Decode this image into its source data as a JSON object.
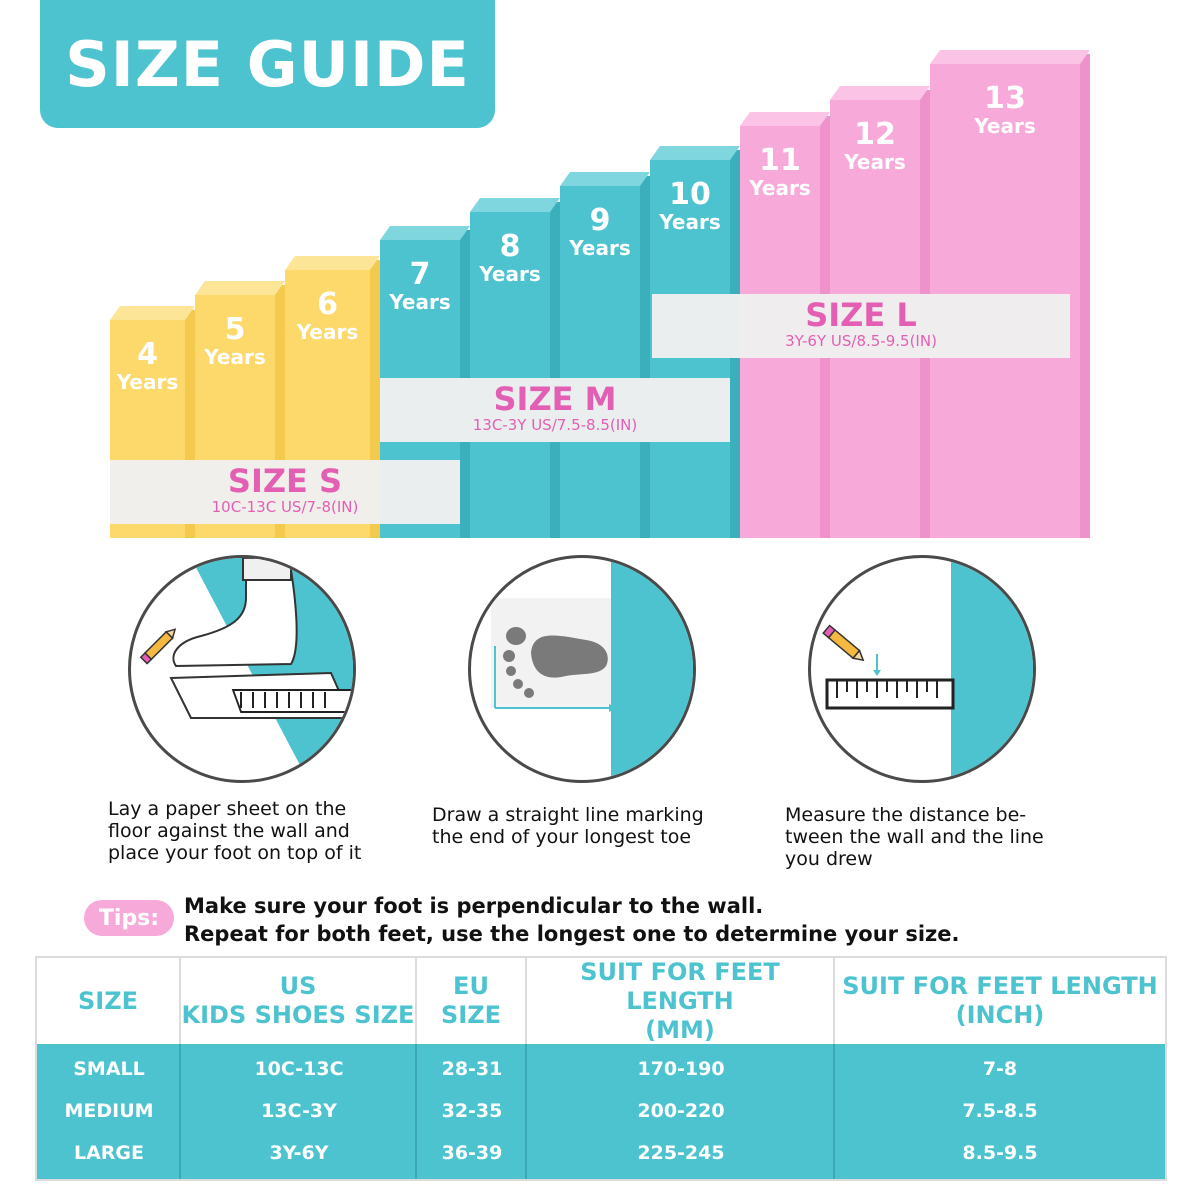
{
  "title": "SIZE GUIDE",
  "colors": {
    "size_s": "#fcd96a",
    "size_m": "#4cc3cf",
    "size_l": "#f7a9d9",
    "accent": "#e35fb4"
  },
  "ages": [
    {
      "num": "4",
      "unit": "Years"
    },
    {
      "num": "5",
      "unit": "Years"
    },
    {
      "num": "6",
      "unit": "Years"
    },
    {
      "num": "7",
      "unit": "Years"
    },
    {
      "num": "8",
      "unit": "Years"
    },
    {
      "num": "9",
      "unit": "Years"
    },
    {
      "num": "10",
      "unit": "Years"
    },
    {
      "num": "11",
      "unit": "Years"
    },
    {
      "num": "12",
      "unit": "Years"
    },
    {
      "num": "13",
      "unit": "Years"
    }
  ],
  "sizes": {
    "s": {
      "label": "SIZE S",
      "range": "10C-13C US/7-8(IN)"
    },
    "m": {
      "label": "SIZE M",
      "range": "13C-3Y US/7.5-8.5(IN)"
    },
    "l": {
      "label": "SIZE L",
      "range": "3Y-6Y US/8.5-9.5(IN)"
    }
  },
  "steps": [
    {
      "text": "Lay a paper sheet on the\nfloor against the wall and\nplace your foot on top of it",
      "icon": "foot-on-paper-icon"
    },
    {
      "text": "Draw a straight line marking\nthe end of your longest toe",
      "icon": "footprint-icon"
    },
    {
      "text": "Measure the distance be-\ntween the wall and the line\nyou drew",
      "icon": "ruler-icon"
    }
  ],
  "tips": {
    "badge": "Tips:",
    "line1": "Make sure your foot is perpendicular to the wall.",
    "line2": "Repeat for both feet, use the longest one to determine your size."
  },
  "table": {
    "headers": [
      "SIZE",
      "US\nKIDS SHOES SIZE",
      "EU\nSIZE",
      "SUIT FOR FEET LENGTH\n(MM)",
      "SUIT FOR FEET LENGTH\n(INCH)"
    ],
    "rows": [
      [
        "SMALL",
        "10C-13C",
        "28-31",
        "170-190",
        "7-8"
      ],
      [
        "MEDIUM",
        "13C-3Y",
        "32-35",
        "200-220",
        "7.5-8.5"
      ],
      [
        "LARGE",
        "3Y-6Y",
        "36-39",
        "225-245",
        "8.5-9.5"
      ]
    ]
  }
}
